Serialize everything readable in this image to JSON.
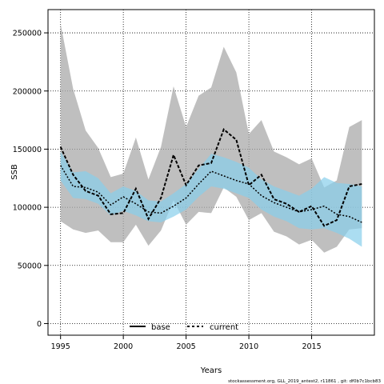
{
  "chart_data": {
    "type": "line",
    "title": "",
    "xlabel": "Years",
    "ylabel": "SSB",
    "xlim": [
      1994,
      2020
    ],
    "ylim": [
      -10000,
      270000
    ],
    "x_ticks": [
      1995,
      2000,
      2005,
      2010,
      2015
    ],
    "y_ticks": [
      0,
      50000,
      100000,
      150000,
      200000,
      250000
    ],
    "grid": true,
    "legend": "bottom-center",
    "x": [
      1995,
      1996,
      1997,
      1998,
      1999,
      2000,
      2001,
      2002,
      2003,
      2004,
      2005,
      2006,
      2007,
      2008,
      2009,
      2010,
      2011,
      2012,
      2013,
      2014,
      2015,
      2016,
      2017,
      2018,
      2019
    ],
    "series": [
      {
        "name": "base",
        "color": "#000000",
        "band_color": "#aaaaaa",
        "values": [
          152000,
          128000,
          114000,
          110000,
          94000,
          95000,
          116000,
          90000,
          108000,
          145000,
          119000,
          136000,
          138000,
          167000,
          158000,
          119000,
          128000,
          107000,
          103000,
          96000,
          101000,
          84000,
          89000,
          118000,
          120000
        ],
        "lower": [
          88000,
          81000,
          78000,
          80000,
          70000,
          70000,
          85000,
          67000,
          80000,
          106000,
          85000,
          96000,
          95000,
          117000,
          109000,
          89000,
          95000,
          79000,
          75000,
          68000,
          72000,
          61000,
          66000,
          81000,
          82000
        ],
        "upper": [
          258000,
          202000,
          166000,
          151000,
          126000,
          129000,
          160000,
          124000,
          152000,
          204000,
          169000,
          196000,
          203000,
          238000,
          216000,
          163000,
          175000,
          148000,
          143000,
          137000,
          142000,
          117000,
          123000,
          169000,
          175000
        ]
      },
      {
        "name": "current",
        "color": "#000000",
        "band_color": "#87ceeb",
        "values": [
          136000,
          118000,
          117000,
          113000,
          102000,
          109000,
          103000,
          96000,
          95000,
          101000,
          108000,
          120000,
          131000,
          127000,
          123000,
          120000,
          110000,
          104000,
          100000,
          96000,
          98000,
          101000,
          94000,
          92000,
          87000
        ],
        "lower": [
          123000,
          108000,
          107000,
          103000,
          93000,
          97000,
          93000,
          88000,
          87000,
          92000,
          98000,
          109000,
          118000,
          116000,
          112000,
          108000,
          98000,
          92000,
          88000,
          82000,
          81000,
          82000,
          78000,
          73000,
          66000
        ],
        "upper": [
          148000,
          130000,
          131000,
          125000,
          112000,
          118000,
          114000,
          106000,
          105000,
          112000,
          120000,
          133000,
          146000,
          143000,
          139000,
          134000,
          124000,
          118000,
          114000,
          110000,
          116000,
          126000,
          121000,
          120000,
          118000
        ]
      }
    ]
  },
  "footer": {
    "note": "stockassessment.org, GLL_2019_antest2, r11861 , git: df0b7c1bcb83"
  }
}
